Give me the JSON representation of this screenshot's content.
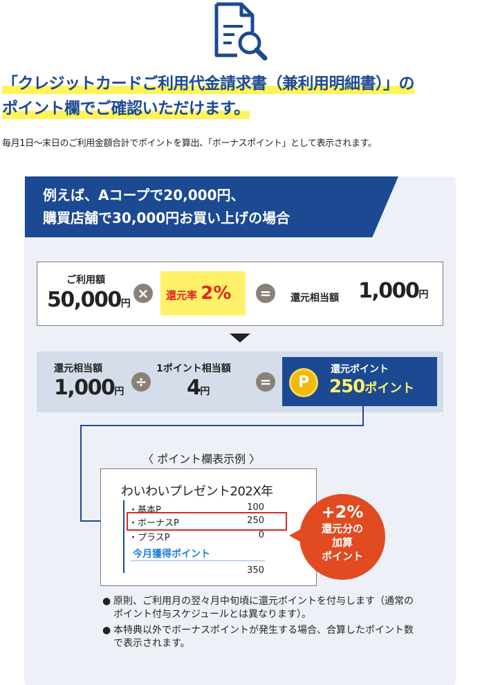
{
  "headline": {
    "line1": "「クレジットカードご利用代金請求書（兼利用明細書）」の",
    "line2": "ポイント欄でご確認いただけます。"
  },
  "subtext": "毎月1日〜末日のご利用金額合計でポイントを算出、「ボーナスポイント」として表示されます。",
  "example": {
    "line1": "例えば、Aコープで20,000円、",
    "line2": "購買店舗で30,000円お買い上げの場合"
  },
  "formula1": {
    "usage_label": "ご利用額",
    "usage_value": "50,000",
    "usage_unit": "円",
    "op_multiply": "×",
    "rate_label": "還元率",
    "rate_value": "2%",
    "op_equals": "=",
    "result_label": "還元相当額",
    "result_value": "1,000",
    "result_unit": "円"
  },
  "formula2": {
    "amount_label": "還元相当額",
    "amount_value": "1,000",
    "amount_unit": "円",
    "op_divide": "÷",
    "per_point_label": "1ポイント相当額",
    "per_point_value": "4",
    "per_point_unit": "円",
    "op_equals": "=",
    "coin_letter": "P",
    "points_label": "還元ポイント",
    "points_value": "250",
    "points_unit": "ポイント"
  },
  "statement_example": {
    "caption": "〈 ポイント欄表示例 〉",
    "title": "わいわいプレゼント202X年",
    "rows": [
      {
        "label": "・基本P",
        "value": "100"
      },
      {
        "label": "・ボーナスP",
        "value": "250"
      },
      {
        "label": "・プラスP",
        "value": "0"
      }
    ],
    "total_label": "今月獲得ポイント",
    "total_value": "350"
  },
  "bubble": {
    "line1": "+2%",
    "line2": "還元分の",
    "line3": "加算",
    "line4": "ポイント"
  },
  "notes": [
    "原則、ご利用月の翌々月中旬頃に還元ポイントを付与します（通常のポイント付与スケジュールとは異なります）。",
    "本特典以外でボーナスポイントが発生する場合、合算したポイント数で表示されます。"
  ],
  "note_bullet": "●",
  "colors": {
    "brand_navy": "#1b4a93",
    "highlight_yellow": "#fff35a",
    "accent_red": "#e0261e",
    "bubble_orange": "#e24a22",
    "coin_gold": "#f2b90a",
    "panel_bg": "#edf1f7",
    "operator_gray": "#8a8176"
  },
  "icons": [
    "document-search-icon",
    "coin-p-icon"
  ]
}
